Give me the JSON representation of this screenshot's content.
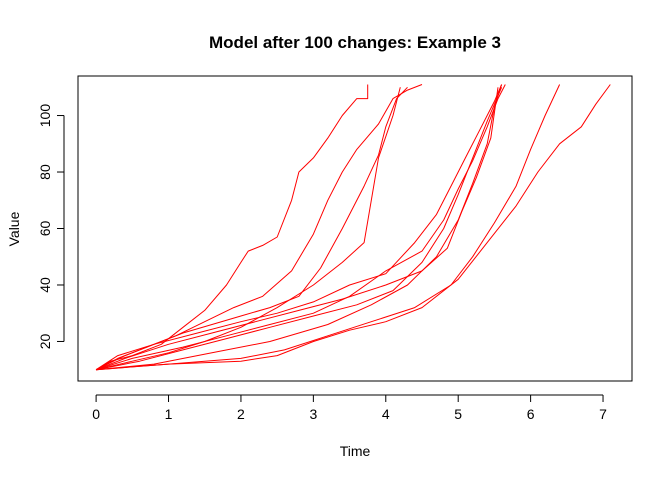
{
  "chart_data": {
    "type": "line",
    "title": "Model after 100 changes: Example 3",
    "xlabel": "Time",
    "ylabel": "Value",
    "xlim": [
      -0.25,
      7.4
    ],
    "ylim": [
      6,
      114
    ],
    "x_ticks": [
      0,
      1,
      2,
      3,
      4,
      5,
      6,
      7
    ],
    "y_ticks": [
      20,
      40,
      60,
      80,
      100
    ],
    "grid": false,
    "line_color": "#ff0000",
    "series": [
      {
        "x": [
          0,
          0.2,
          0.5,
          0.9,
          1.2,
          1.5,
          1.8,
          2.0,
          2.1,
          2.3,
          2.5,
          2.7,
          2.8,
          3.0,
          3.2,
          3.4,
          3.6,
          3.75,
          3.75
        ],
        "y": [
          10,
          13,
          15,
          19,
          25,
          31,
          40,
          48,
          52,
          54,
          57,
          70,
          80,
          85,
          92,
          100,
          106,
          106,
          111
        ]
      },
      {
        "x": [
          0,
          0.3,
          0.7,
          1.1,
          1.5,
          1.9,
          2.3,
          2.7,
          3.0,
          3.2,
          3.4,
          3.6,
          3.9,
          4.1,
          4.3,
          4.5
        ],
        "y": [
          10,
          14,
          18,
          22,
          27,
          32,
          36,
          45,
          58,
          70,
          80,
          88,
          97,
          106,
          109,
          111
        ]
      },
      {
        "x": [
          0,
          0.4,
          0.8,
          1.2,
          1.6,
          2.0,
          2.4,
          2.8,
          3.1,
          3.4,
          3.7,
          3.9,
          4.0,
          4.15,
          4.3
        ],
        "y": [
          10,
          15,
          19,
          23,
          26,
          29,
          32,
          36,
          46,
          60,
          75,
          86,
          96,
          106,
          110
        ]
      },
      {
        "x": [
          0,
          0.5,
          1.0,
          1.5,
          2.0,
          2.5,
          3.0,
          3.4,
          3.7,
          3.8,
          3.9,
          4.1,
          4.2
        ],
        "y": [
          10,
          13,
          16,
          20,
          25,
          32,
          40,
          48,
          55,
          70,
          85,
          100,
          110
        ]
      },
      {
        "x": [
          0,
          0.3,
          0.8,
          1.4,
          2.0,
          2.5,
          3.0,
          3.5,
          4.0,
          4.4,
          4.7,
          4.9,
          5.1,
          5.3,
          5.5,
          5.6
        ],
        "y": [
          10,
          15,
          19,
          23,
          27,
          30,
          34,
          40,
          44,
          55,
          65,
          75,
          85,
          95,
          105,
          111
        ]
      },
      {
        "x": [
          0,
          0.5,
          1.2,
          1.8,
          2.4,
          3.0,
          3.5,
          4.0,
          4.5,
          4.8,
          5.0,
          5.2,
          5.4,
          5.55,
          5.65
        ],
        "y": [
          10,
          14,
          18,
          22,
          26,
          30,
          36,
          45,
          52,
          63,
          74,
          84,
          96,
          106,
          111
        ]
      },
      {
        "x": [
          0,
          0.6,
          1.2,
          1.8,
          2.4,
          3.0,
          3.6,
          4.1,
          4.5,
          4.8,
          5.0,
          5.2,
          5.4,
          5.6
        ],
        "y": [
          10,
          13,
          17,
          21,
          25,
          29,
          33,
          38,
          48,
          60,
          72,
          85,
          98,
          110
        ]
      },
      {
        "x": [
          0,
          0.8,
          1.6,
          2.4,
          3.2,
          3.8,
          4.3,
          4.7,
          5.0,
          5.2,
          5.4,
          5.5,
          5.6
        ],
        "y": [
          10,
          12,
          16,
          20,
          26,
          33,
          40,
          50,
          63,
          76,
          90,
          103,
          111
        ]
      },
      {
        "x": [
          0,
          0.4,
          1.0,
          1.6,
          2.2,
          2.8,
          3.4,
          4.0,
          4.5,
          4.85,
          5.05,
          5.25,
          5.45,
          5.55
        ],
        "y": [
          10,
          14,
          19,
          23,
          27,
          31,
          35,
          40,
          45,
          53,
          66,
          78,
          92,
          110
        ]
      },
      {
        "x": [
          0,
          1.0,
          2.0,
          2.6,
          3.2,
          3.8,
          4.4,
          4.9,
          5.2,
          5.5,
          5.8,
          6.0,
          6.2,
          6.4
        ],
        "y": [
          10,
          12,
          14,
          17,
          22,
          27,
          32,
          40,
          50,
          62,
          75,
          88,
          100,
          111
        ]
      },
      {
        "x": [
          0,
          1.0,
          2.0,
          2.5,
          3.0,
          3.5,
          4.0,
          4.5,
          5.0,
          5.4,
          5.8,
          6.1,
          6.4,
          6.7,
          6.9,
          7.1
        ],
        "y": [
          10,
          12,
          13,
          15,
          20,
          24,
          27,
          32,
          42,
          55,
          68,
          80,
          90,
          96,
          104,
          111
        ]
      }
    ]
  }
}
